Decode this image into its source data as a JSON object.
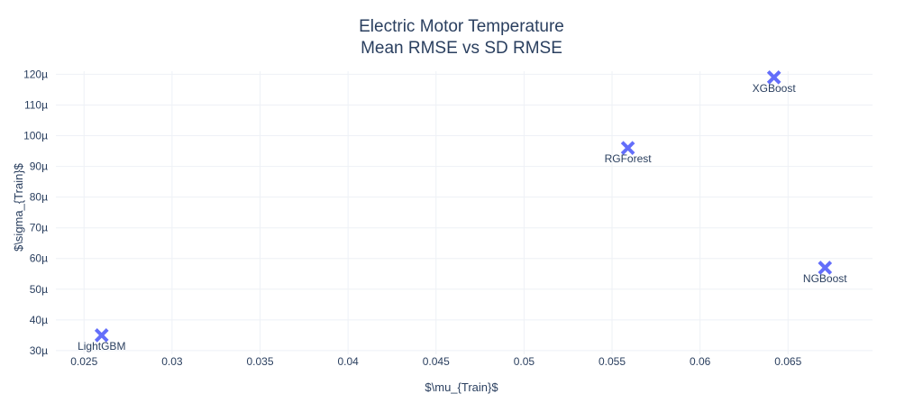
{
  "chart_data": {
    "type": "scatter",
    "title_lines": [
      "Electric Motor Temperature",
      "Mean RMSE vs SD RMSE"
    ],
    "xlabel": "$\\mu_{Train}$",
    "ylabel": "$\\sigma_{Train}$",
    "xlim": [
      0.0234,
      0.0698
    ],
    "ylim": [
      2.88e-05,
      0.000121
    ],
    "x_ticks": [
      0.025,
      0.03,
      0.035,
      0.04,
      0.045,
      0.05,
      0.055,
      0.06,
      0.065
    ],
    "x_tick_labels": [
      "0.025",
      "0.03",
      "0.035",
      "0.04",
      "0.045",
      "0.05",
      "0.055",
      "0.06",
      "0.065"
    ],
    "y_ticks": [
      3e-05,
      4e-05,
      5e-05,
      6e-05,
      7e-05,
      8e-05,
      9e-05,
      0.0001,
      0.00011,
      0.00012
    ],
    "y_tick_labels": [
      "30µ",
      "40µ",
      "50µ",
      "60µ",
      "70µ",
      "80µ",
      "90µ",
      "100µ",
      "110µ",
      "120µ"
    ],
    "grid": true,
    "marker": "x",
    "marker_color": "#636efa",
    "points": [
      {
        "label": "LightGBM",
        "x": 0.026,
        "y": 3.5e-05
      },
      {
        "label": "RGForest",
        "x": 0.0559,
        "y": 9.6e-05
      },
      {
        "label": "XGBoost",
        "x": 0.0642,
        "y": 0.000119
      },
      {
        "label": "NGBoost",
        "x": 0.0671,
        "y": 5.7e-05
      }
    ]
  }
}
